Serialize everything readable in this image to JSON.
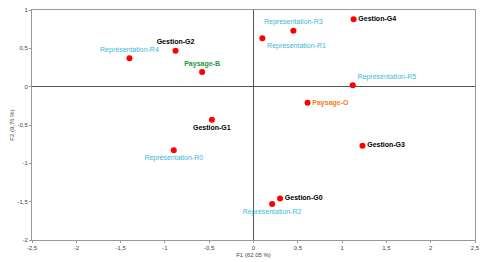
{
  "chart_data": {
    "type": "scatter",
    "x_label": "F1 (62,05 %)",
    "y_label": "F2 (9,76 %)",
    "x": [
      1.13,
      0.45,
      0.1,
      -0.88,
      -1.4,
      -0.58,
      1.12,
      0.61,
      -0.47,
      -0.9,
      1.23,
      0.3,
      0.21
    ],
    "values": [
      0.88,
      0.73,
      0.63,
      0.47,
      0.37,
      0.19,
      0.02,
      -0.21,
      -0.43,
      -0.83,
      -0.77,
      -1.46,
      -1.53
    ],
    "labels": [
      "Gestion-G4",
      "Représentation-R3",
      "Représentation-R1",
      "Gestion-G2",
      "Représentation-R4",
      "Paysage-B",
      "Représentation-R5",
      "Paysage-O",
      "Gestion-G1",
      "Représentation-R0",
      "Gestion-G3",
      "Gestion-G0",
      "Représentation-R2"
    ],
    "colors": [
      "#000000",
      "#3cb9d8",
      "#3cb9d8",
      "#000000",
      "#3cb9d8",
      "#1e9a3c",
      "#3cb9d8",
      "#f07d1e",
      "#000000",
      "#3cb9d8",
      "#000000",
      "#000000",
      "#3cb9d8"
    ],
    "color": "#ff0000",
    "xlim": [
      -2.5,
      2.5
    ],
    "xticks": [
      {
        "value": -2.5,
        "label": "-2,5"
      },
      -2,
      {
        "value": -1.5,
        "label": "-1,5"
      },
      -1,
      {
        "value": -0.5,
        "label": "-0,5"
      },
      0,
      {
        "value": 0.5,
        "label": "0,5"
      },
      1,
      {
        "value": 1.5,
        "label": "1,5"
      },
      2,
      {
        "value": 2.5,
        "label": "2,5"
      }
    ],
    "ylim": [
      -2,
      1
    ],
    "yticks": [
      -2,
      {
        "value": -1.5,
        "label": "-1,5"
      },
      -1,
      {
        "value": -0.5,
        "label": "-0,5"
      },
      0,
      {
        "value": 0.5,
        "label": "0,5"
      },
      1
    ],
    "grid": false
  }
}
